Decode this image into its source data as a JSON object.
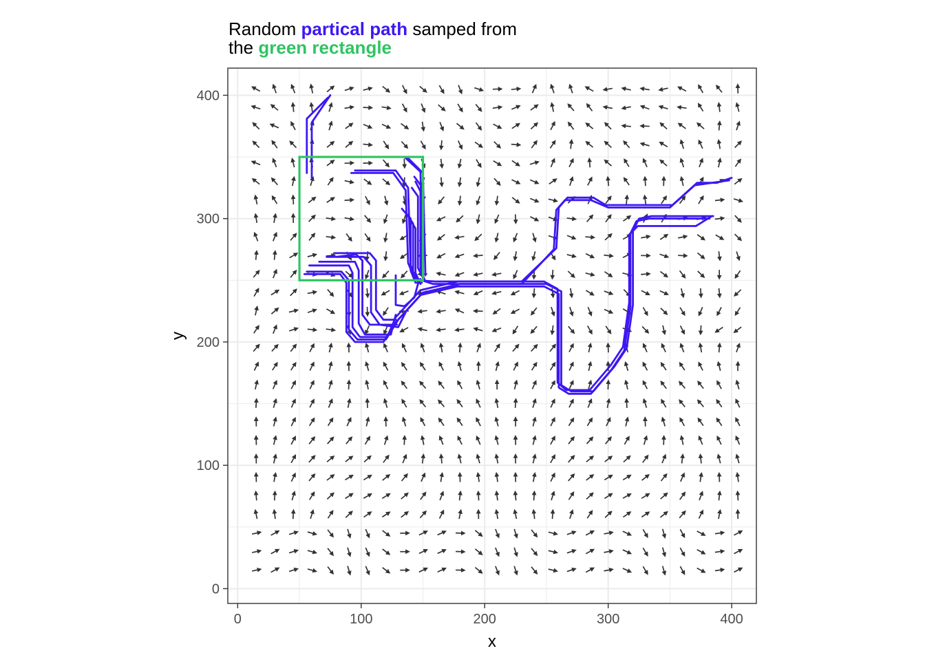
{
  "title": {
    "line1": [
      {
        "text": "Random ",
        "color": "#000000",
        "bold": false
      },
      {
        "text": "partical path",
        "color": "#3d17f2",
        "bold": true
      },
      {
        "text": " samped from",
        "color": "#000000",
        "bold": false
      }
    ],
    "line2": [
      {
        "text": "the ",
        "color": "#000000",
        "bold": false
      },
      {
        "text": "green rectangle",
        "color": "#2fc463",
        "bold": true
      }
    ]
  },
  "colors": {
    "path": "#3d17f2",
    "rectangle": "#2fc463",
    "arrow": "#333333",
    "grid": "#ebebeb",
    "panel_border": "#333333"
  },
  "chart_data": {
    "type": "scatter",
    "description_of_marks": "vector field of arrows on a grid, particle paths, sampling rectangle",
    "xlabel": "x",
    "ylabel": "y",
    "xlim": [
      -8,
      420
    ],
    "ylim": [
      -12,
      422
    ],
    "x_ticks": [
      0,
      100,
      200,
      300,
      400
    ],
    "y_ticks": [
      0,
      100,
      200,
      300,
      400
    ],
    "x_tick_labels": [
      "0",
      "100",
      "200",
      "300",
      "400"
    ],
    "y_tick_labels": [
      "0",
      "100",
      "200",
      "300",
      "400"
    ],
    "grid": true,
    "rectangle": {
      "x0": 50,
      "x1": 150,
      "y0": 250,
      "y1": 350
    },
    "vector_field": {
      "x_start": 15,
      "x_step": 15,
      "x_count": 27,
      "y_start": 15,
      "y_step": 15,
      "y_count": 27,
      "arrow_length": 7
    },
    "paths": [
      [
        [
          60,
          333
        ],
        [
          60,
          378
        ],
        [
          75,
          400
        ]
      ],
      [
        [
          56,
          337
        ],
        [
          56,
          381
        ],
        [
          73,
          398
        ]
      ],
      [
        [
          137,
          350
        ],
        [
          150,
          337
        ],
        [
          152,
          254
        ]
      ],
      [
        [
          135,
          350
        ],
        [
          148,
          338
        ],
        [
          150,
          255
        ]
      ],
      [
        [
          95,
          339
        ],
        [
          128,
          339
        ],
        [
          138,
          325
        ],
        [
          140,
          262
        ],
        [
          145,
          250
        ],
        [
          160,
          249
        ],
        [
          230,
          249
        ],
        [
          258,
          276
        ],
        [
          260,
          309
        ],
        [
          267,
          317
        ],
        [
          288,
          317
        ],
        [
          298,
          311
        ],
        [
          318,
          311
        ],
        [
          352,
          311
        ],
        [
          372,
          329
        ],
        [
          388,
          329
        ],
        [
          400,
          333
        ]
      ],
      [
        [
          92,
          337
        ],
        [
          126,
          337
        ],
        [
          136,
          323
        ],
        [
          138,
          264
        ],
        [
          143,
          252
        ],
        [
          158,
          247
        ],
        [
          230,
          247
        ],
        [
          256,
          275
        ],
        [
          258,
          307
        ],
        [
          265,
          315
        ],
        [
          286,
          315
        ],
        [
          300,
          309
        ],
        [
          350,
          309
        ],
        [
          370,
          327
        ],
        [
          398,
          331
        ]
      ],
      [
        [
          56,
          257
        ],
        [
          84,
          257
        ],
        [
          90,
          250
        ],
        [
          90,
          210
        ],
        [
          97,
          202
        ],
        [
          120,
          202
        ],
        [
          130,
          218
        ],
        [
          150,
          240
        ],
        [
          180,
          247
        ],
        [
          250,
          247
        ],
        [
          262,
          241
        ],
        [
          262,
          165
        ],
        [
          270,
          160
        ],
        [
          288,
          160
        ],
        [
          305,
          180
        ],
        [
          315,
          195
        ],
        [
          320,
          230
        ],
        [
          320,
          290
        ],
        [
          325,
          300
        ],
        [
          335,
          302
        ],
        [
          370,
          302
        ],
        [
          385,
          302
        ]
      ],
      [
        [
          54,
          255
        ],
        [
          83,
          255
        ],
        [
          88,
          248
        ],
        [
          88,
          208
        ],
        [
          95,
          200
        ],
        [
          118,
          200
        ],
        [
          128,
          216
        ],
        [
          148,
          238
        ],
        [
          178,
          245
        ],
        [
          248,
          245
        ],
        [
          260,
          239
        ],
        [
          260,
          163
        ],
        [
          268,
          158
        ],
        [
          286,
          158
        ],
        [
          303,
          178
        ],
        [
          313,
          193
        ],
        [
          318,
          228
        ],
        [
          318,
          288
        ],
        [
          323,
          298
        ],
        [
          333,
          300
        ],
        [
          368,
          300
        ],
        [
          382,
          300
        ]
      ],
      [
        [
          58,
          262
        ],
        [
          90,
          262
        ],
        [
          93,
          256
        ],
        [
          93,
          212
        ],
        [
          99,
          204
        ],
        [
          121,
          204
        ],
        [
          128,
          220
        ],
        [
          148,
          242
        ],
        [
          178,
          249
        ],
        [
          248,
          249
        ],
        [
          259,
          243
        ],
        [
          259,
          167
        ],
        [
          266,
          161
        ],
        [
          285,
          161
        ],
        [
          302,
          181
        ],
        [
          312,
          196
        ],
        [
          317,
          232
        ],
        [
          317,
          287
        ],
        [
          324,
          294
        ],
        [
          371,
          294
        ],
        [
          384,
          302
        ]
      ],
      [
        [
          66,
          265
        ],
        [
          95,
          265
        ],
        [
          98,
          258
        ],
        [
          98,
          215
        ],
        [
          103,
          206
        ],
        [
          124,
          206
        ],
        [
          128,
          222
        ]
      ],
      [
        [
          72,
          269
        ],
        [
          102,
          269
        ],
        [
          108,
          262
        ],
        [
          108,
          224
        ],
        [
          115,
          214
        ],
        [
          130,
          212
        ],
        [
          136,
          224
        ]
      ],
      [
        [
          78,
          272
        ],
        [
          107,
          272
        ],
        [
          112,
          266
        ],
        [
          112,
          226
        ],
        [
          118,
          218
        ],
        [
          128,
          218
        ]
      ],
      [
        [
          80,
          269
        ],
        [
          96,
          271
        ],
        [
          101,
          266
        ],
        [
          101,
          222
        ],
        [
          107,
          214
        ],
        [
          129,
          214
        ]
      ],
      [
        [
          128,
          254
        ],
        [
          128,
          230
        ],
        [
          135,
          229
        ],
        [
          143,
          236
        ],
        [
          146,
          247
        ],
        [
          148,
          251
        ]
      ],
      [
        [
          133,
          308
        ],
        [
          140,
          300
        ],
        [
          140,
          258
        ],
        [
          144,
          248
        ],
        [
          149,
          248
        ]
      ],
      [
        [
          136,
          305
        ],
        [
          142,
          296
        ],
        [
          142,
          257
        ],
        [
          146,
          249
        ]
      ],
      [
        [
          139,
          300
        ],
        [
          144,
          292
        ],
        [
          144,
          256
        ],
        [
          148,
          247
        ]
      ],
      [
        [
          141,
          325
        ],
        [
          146,
          318
        ],
        [
          146,
          260
        ],
        [
          150,
          252
        ]
      ],
      [
        [
          144,
          330
        ],
        [
          148,
          322
        ],
        [
          148,
          258
        ],
        [
          151,
          250
        ]
      ],
      [
        [
          143,
          334
        ],
        [
          149,
          326
        ],
        [
          149,
          256
        ],
        [
          152,
          249
        ]
      ]
    ]
  }
}
